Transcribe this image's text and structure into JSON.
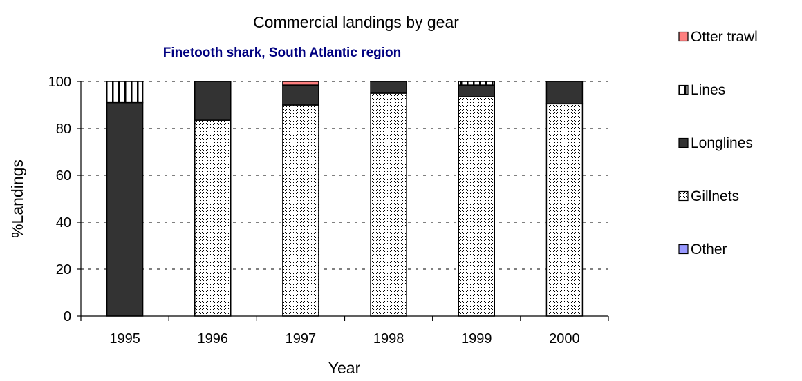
{
  "chart_data": {
    "type": "bar",
    "stacked": true,
    "title": "Commercial landings by gear",
    "subtitle": "Finetooth shark, South Atlantic region",
    "xlabel": "Year",
    "ylabel": "%Landings",
    "ylim": [
      0,
      100
    ],
    "yticks": [
      0,
      20,
      40,
      60,
      80,
      100
    ],
    "grid": true,
    "legend_position": "right",
    "categories": [
      "1995",
      "1996",
      "1997",
      "1998",
      "1999",
      "2000"
    ],
    "series": [
      {
        "name": "Other",
        "color": "#9999ff",
        "pattern": "solid",
        "values": [
          0,
          0,
          0,
          0,
          0,
          0
        ]
      },
      {
        "name": "Gillnets",
        "color": "#ffffff",
        "pattern": "dots",
        "values": [
          0,
          83.5,
          90,
          95,
          93.5,
          90.5
        ]
      },
      {
        "name": "Longlines",
        "color": "#333333",
        "pattern": "solid",
        "values": [
          91,
          16.5,
          8.5,
          5,
          5,
          9.5
        ]
      },
      {
        "name": "Lines",
        "color": "#ffffff",
        "pattern": "vertical-lines",
        "values": [
          9,
          0,
          0,
          0,
          1.5,
          0
        ]
      },
      {
        "name": "Otter trawl",
        "color": "#ff8080",
        "pattern": "solid",
        "values": [
          0,
          0,
          1.5,
          0,
          0,
          0
        ]
      }
    ],
    "legend_order": [
      "Otter trawl",
      "Lines",
      "Longlines",
      "Gillnets",
      "Other"
    ]
  }
}
